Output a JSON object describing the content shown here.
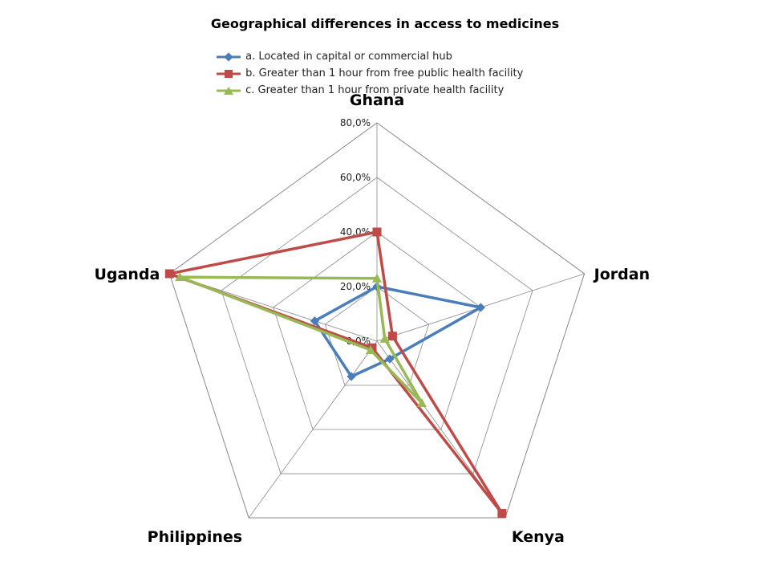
{
  "chart_data": {
    "type": "radar",
    "title": "Geographical differences in access to medicines",
    "categories": [
      "Ghana",
      "Jordan",
      "Kenya",
      "Philippines",
      "Uganda"
    ],
    "rlim": [
      0,
      80
    ],
    "ticks": [
      "0,0%",
      "20,0%",
      "40,0%",
      "60,0%",
      "80,0%"
    ],
    "series": [
      {
        "name": "a. Located in capital or commercial hub",
        "color": "#4a7ebb",
        "marker": "diamond",
        "values": [
          20,
          40,
          8,
          16,
          24
        ]
      },
      {
        "name": "b. Greater than 1 hour from free public health facility",
        "color": "#be4b48",
        "marker": "square",
        "values": [
          40,
          6,
          78,
          3,
          80
        ]
      },
      {
        "name": "c. Greater than 1 hour from private health facility",
        "color": "#98b954",
        "marker": "triangle",
        "values": [
          23,
          3,
          28,
          4,
          76
        ]
      }
    ],
    "legend_position": "top",
    "grid": true
  }
}
